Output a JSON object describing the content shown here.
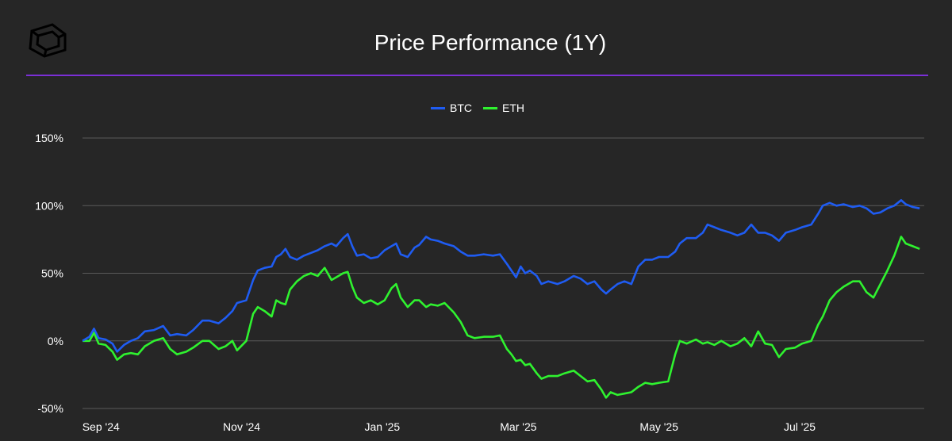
{
  "header": {
    "title": "Price Performance (1Y)"
  },
  "colors": {
    "background": "#262626",
    "divider": "#7b2fd6",
    "grid": "#5a5a5a",
    "btc": "#1f5cf2",
    "eth": "#2ff22f"
  },
  "logo": {
    "icon": "cube-logo-icon"
  },
  "chart_data": {
    "type": "line",
    "title": "Price Performance (1Y)",
    "xlabel": "",
    "ylabel": "",
    "ylim": [
      -50,
      150
    ],
    "xlim": [
      "2024-08-24",
      "2025-08-24"
    ],
    "grid": "horizontal",
    "legend_position": "top-center",
    "y_ticks": [
      {
        "value": 150,
        "label": "150%"
      },
      {
        "value": 100,
        "label": "100%"
      },
      {
        "value": 50,
        "label": "50%"
      },
      {
        "value": 0,
        "label": "0%"
      },
      {
        "value": -50,
        "label": "-50%"
      }
    ],
    "x_ticks": [
      {
        "date": "2024-09-01",
        "label": "Sep '24"
      },
      {
        "date": "2024-11-01",
        "label": "Nov '24"
      },
      {
        "date": "2025-01-01",
        "label": "Jan '25"
      },
      {
        "date": "2025-03-01",
        "label": "Mar '25"
      },
      {
        "date": "2025-05-01",
        "label": "May '25"
      },
      {
        "date": "2025-07-01",
        "label": "Jul '25"
      }
    ],
    "series": [
      {
        "name": "BTC",
        "color": "#1f5cf2",
        "points": [
          [
            "2024-08-24",
            0
          ],
          [
            "2024-08-27",
            3
          ],
          [
            "2024-08-29",
            9
          ],
          [
            "2024-08-31",
            2
          ],
          [
            "2024-09-03",
            1
          ],
          [
            "2024-09-06",
            -2
          ],
          [
            "2024-09-08",
            -8
          ],
          [
            "2024-09-11",
            -3
          ],
          [
            "2024-09-14",
            0
          ],
          [
            "2024-09-17",
            2
          ],
          [
            "2024-09-20",
            7
          ],
          [
            "2024-09-24",
            8
          ],
          [
            "2024-09-28",
            11
          ],
          [
            "2024-10-01",
            4
          ],
          [
            "2024-10-04",
            5
          ],
          [
            "2024-10-08",
            4
          ],
          [
            "2024-10-11",
            8
          ],
          [
            "2024-10-15",
            15
          ],
          [
            "2024-10-18",
            15
          ],
          [
            "2024-10-22",
            13
          ],
          [
            "2024-10-25",
            17
          ],
          [
            "2024-10-28",
            22
          ],
          [
            "2024-10-30",
            28
          ],
          [
            "2024-11-03",
            30
          ],
          [
            "2024-11-06",
            45
          ],
          [
            "2024-11-08",
            52
          ],
          [
            "2024-11-11",
            54
          ],
          [
            "2024-11-14",
            55
          ],
          [
            "2024-11-16",
            62
          ],
          [
            "2024-11-18",
            64
          ],
          [
            "2024-11-20",
            68
          ],
          [
            "2024-11-22",
            62
          ],
          [
            "2024-11-25",
            60
          ],
          [
            "2024-11-28",
            63
          ],
          [
            "2024-12-01",
            65
          ],
          [
            "2024-12-04",
            67
          ],
          [
            "2024-12-07",
            70
          ],
          [
            "2024-12-10",
            72
          ],
          [
            "2024-12-12",
            70
          ],
          [
            "2024-12-15",
            76
          ],
          [
            "2024-12-17",
            79
          ],
          [
            "2024-12-19",
            70
          ],
          [
            "2024-12-21",
            63
          ],
          [
            "2024-12-24",
            64
          ],
          [
            "2024-12-27",
            61
          ],
          [
            "2024-12-30",
            62
          ],
          [
            "2025-01-02",
            67
          ],
          [
            "2025-01-05",
            70
          ],
          [
            "2025-01-07",
            72
          ],
          [
            "2025-01-09",
            64
          ],
          [
            "2025-01-12",
            62
          ],
          [
            "2025-01-15",
            69
          ],
          [
            "2025-01-17",
            71
          ],
          [
            "2025-01-20",
            77
          ],
          [
            "2025-01-22",
            75
          ],
          [
            "2025-01-25",
            74
          ],
          [
            "2025-01-28",
            72
          ],
          [
            "2025-02-01",
            70
          ],
          [
            "2025-02-04",
            66
          ],
          [
            "2025-02-07",
            63
          ],
          [
            "2025-02-10",
            63
          ],
          [
            "2025-02-14",
            64
          ],
          [
            "2025-02-18",
            63
          ],
          [
            "2025-02-21",
            64
          ],
          [
            "2025-02-24",
            57
          ],
          [
            "2025-02-26",
            52
          ],
          [
            "2025-02-28",
            47
          ],
          [
            "2025-03-02",
            55
          ],
          [
            "2025-03-04",
            50
          ],
          [
            "2025-03-06",
            52
          ],
          [
            "2025-03-09",
            48
          ],
          [
            "2025-03-11",
            42
          ],
          [
            "2025-03-14",
            44
          ],
          [
            "2025-03-18",
            42
          ],
          [
            "2025-03-21",
            44
          ],
          [
            "2025-03-25",
            48
          ],
          [
            "2025-03-28",
            46
          ],
          [
            "2025-03-31",
            42
          ],
          [
            "2025-04-03",
            44
          ],
          [
            "2025-04-06",
            38
          ],
          [
            "2025-04-08",
            35
          ],
          [
            "2025-04-10",
            38
          ],
          [
            "2025-04-13",
            42
          ],
          [
            "2025-04-16",
            44
          ],
          [
            "2025-04-19",
            42
          ],
          [
            "2025-04-22",
            55
          ],
          [
            "2025-04-25",
            60
          ],
          [
            "2025-04-28",
            60
          ],
          [
            "2025-05-01",
            62
          ],
          [
            "2025-05-05",
            62
          ],
          [
            "2025-05-08",
            66
          ],
          [
            "2025-05-10",
            72
          ],
          [
            "2025-05-13",
            76
          ],
          [
            "2025-05-17",
            76
          ],
          [
            "2025-05-20",
            80
          ],
          [
            "2025-05-22",
            86
          ],
          [
            "2025-05-25",
            84
          ],
          [
            "2025-05-28",
            82
          ],
          [
            "2025-06-01",
            80
          ],
          [
            "2025-06-04",
            78
          ],
          [
            "2025-06-07",
            80
          ],
          [
            "2025-06-10",
            86
          ],
          [
            "2025-06-13",
            80
          ],
          [
            "2025-06-16",
            80
          ],
          [
            "2025-06-19",
            78
          ],
          [
            "2025-06-22",
            74
          ],
          [
            "2025-06-25",
            80
          ],
          [
            "2025-06-29",
            82
          ],
          [
            "2025-07-02",
            84
          ],
          [
            "2025-07-06",
            86
          ],
          [
            "2025-07-09",
            94
          ],
          [
            "2025-07-11",
            100
          ],
          [
            "2025-07-14",
            102
          ],
          [
            "2025-07-17",
            100
          ],
          [
            "2025-07-20",
            101
          ],
          [
            "2025-07-24",
            99
          ],
          [
            "2025-07-27",
            100
          ],
          [
            "2025-07-30",
            98
          ],
          [
            "2025-08-02",
            94
          ],
          [
            "2025-08-05",
            95
          ],
          [
            "2025-08-08",
            98
          ],
          [
            "2025-08-11",
            100
          ],
          [
            "2025-08-14",
            104
          ],
          [
            "2025-08-16",
            101
          ],
          [
            "2025-08-19",
            99
          ],
          [
            "2025-08-22",
            98
          ]
        ]
      },
      {
        "name": "ETH",
        "color": "#2ff22f",
        "points": [
          [
            "2024-08-24",
            0
          ],
          [
            "2024-08-27",
            0
          ],
          [
            "2024-08-29",
            6
          ],
          [
            "2024-08-31",
            -2
          ],
          [
            "2024-09-03",
            -3
          ],
          [
            "2024-09-06",
            -8
          ],
          [
            "2024-09-08",
            -14
          ],
          [
            "2024-09-11",
            -10
          ],
          [
            "2024-09-14",
            -9
          ],
          [
            "2024-09-17",
            -10
          ],
          [
            "2024-09-20",
            -4
          ],
          [
            "2024-09-24",
            0
          ],
          [
            "2024-09-28",
            2
          ],
          [
            "2024-10-01",
            -6
          ],
          [
            "2024-10-04",
            -10
          ],
          [
            "2024-10-08",
            -8
          ],
          [
            "2024-10-11",
            -5
          ],
          [
            "2024-10-15",
            0
          ],
          [
            "2024-10-18",
            0
          ],
          [
            "2024-10-22",
            -6
          ],
          [
            "2024-10-25",
            -4
          ],
          [
            "2024-10-28",
            0
          ],
          [
            "2024-10-30",
            -7
          ],
          [
            "2024-11-03",
            0
          ],
          [
            "2024-11-06",
            20
          ],
          [
            "2024-11-08",
            25
          ],
          [
            "2024-11-11",
            22
          ],
          [
            "2024-11-14",
            18
          ],
          [
            "2024-11-16",
            30
          ],
          [
            "2024-11-18",
            28
          ],
          [
            "2024-11-20",
            27
          ],
          [
            "2024-11-22",
            38
          ],
          [
            "2024-11-25",
            44
          ],
          [
            "2024-11-28",
            48
          ],
          [
            "2024-12-01",
            50
          ],
          [
            "2024-12-04",
            48
          ],
          [
            "2024-12-07",
            54
          ],
          [
            "2024-12-10",
            45
          ],
          [
            "2024-12-12",
            47
          ],
          [
            "2024-12-15",
            50
          ],
          [
            "2024-12-17",
            51
          ],
          [
            "2024-12-19",
            40
          ],
          [
            "2024-12-21",
            32
          ],
          [
            "2024-12-24",
            28
          ],
          [
            "2024-12-27",
            30
          ],
          [
            "2024-12-30",
            27
          ],
          [
            "2025-01-02",
            30
          ],
          [
            "2025-01-05",
            39
          ],
          [
            "2025-01-07",
            42
          ],
          [
            "2025-01-09",
            32
          ],
          [
            "2025-01-12",
            25
          ],
          [
            "2025-01-15",
            30
          ],
          [
            "2025-01-17",
            30
          ],
          [
            "2025-01-20",
            25
          ],
          [
            "2025-01-22",
            27
          ],
          [
            "2025-01-25",
            26
          ],
          [
            "2025-01-28",
            28
          ],
          [
            "2025-02-01",
            21
          ],
          [
            "2025-02-04",
            14
          ],
          [
            "2025-02-07",
            4
          ],
          [
            "2025-02-10",
            2
          ],
          [
            "2025-02-14",
            3
          ],
          [
            "2025-02-18",
            3
          ],
          [
            "2025-02-21",
            4
          ],
          [
            "2025-02-24",
            -6
          ],
          [
            "2025-02-26",
            -10
          ],
          [
            "2025-02-28",
            -15
          ],
          [
            "2025-03-02",
            -14
          ],
          [
            "2025-03-04",
            -18
          ],
          [
            "2025-03-06",
            -17
          ],
          [
            "2025-03-09",
            -24
          ],
          [
            "2025-03-11",
            -28
          ],
          [
            "2025-03-14",
            -26
          ],
          [
            "2025-03-18",
            -26
          ],
          [
            "2025-03-21",
            -24
          ],
          [
            "2025-03-25",
            -22
          ],
          [
            "2025-03-28",
            -26
          ],
          [
            "2025-03-31",
            -30
          ],
          [
            "2025-04-03",
            -29
          ],
          [
            "2025-04-06",
            -36
          ],
          [
            "2025-04-08",
            -42
          ],
          [
            "2025-04-10",
            -38
          ],
          [
            "2025-04-13",
            -40
          ],
          [
            "2025-04-16",
            -39
          ],
          [
            "2025-04-19",
            -38
          ],
          [
            "2025-04-22",
            -34
          ],
          [
            "2025-04-25",
            -31
          ],
          [
            "2025-04-28",
            -32
          ],
          [
            "2025-05-01",
            -31
          ],
          [
            "2025-05-05",
            -30
          ],
          [
            "2025-05-08",
            -10
          ],
          [
            "2025-05-10",
            0
          ],
          [
            "2025-05-13",
            -2
          ],
          [
            "2025-05-17",
            1
          ],
          [
            "2025-05-20",
            -2
          ],
          [
            "2025-05-22",
            -1
          ],
          [
            "2025-05-25",
            -3
          ],
          [
            "2025-05-28",
            0
          ],
          [
            "2025-06-01",
            -4
          ],
          [
            "2025-06-04",
            -2
          ],
          [
            "2025-06-07",
            2
          ],
          [
            "2025-06-10",
            -4
          ],
          [
            "2025-06-13",
            7
          ],
          [
            "2025-06-16",
            -2
          ],
          [
            "2025-06-19",
            -3
          ],
          [
            "2025-06-22",
            -12
          ],
          [
            "2025-06-25",
            -6
          ],
          [
            "2025-06-29",
            -5
          ],
          [
            "2025-07-02",
            -2
          ],
          [
            "2025-07-06",
            0
          ],
          [
            "2025-07-09",
            12
          ],
          [
            "2025-07-11",
            18
          ],
          [
            "2025-07-14",
            30
          ],
          [
            "2025-07-17",
            36
          ],
          [
            "2025-07-20",
            40
          ],
          [
            "2025-07-24",
            44
          ],
          [
            "2025-07-27",
            44
          ],
          [
            "2025-07-30",
            36
          ],
          [
            "2025-08-02",
            32
          ],
          [
            "2025-08-05",
            42
          ],
          [
            "2025-08-08",
            52
          ],
          [
            "2025-08-11",
            63
          ],
          [
            "2025-08-14",
            77
          ],
          [
            "2025-08-16",
            72
          ],
          [
            "2025-08-19",
            70
          ],
          [
            "2025-08-22",
            68
          ]
        ]
      }
    ]
  }
}
